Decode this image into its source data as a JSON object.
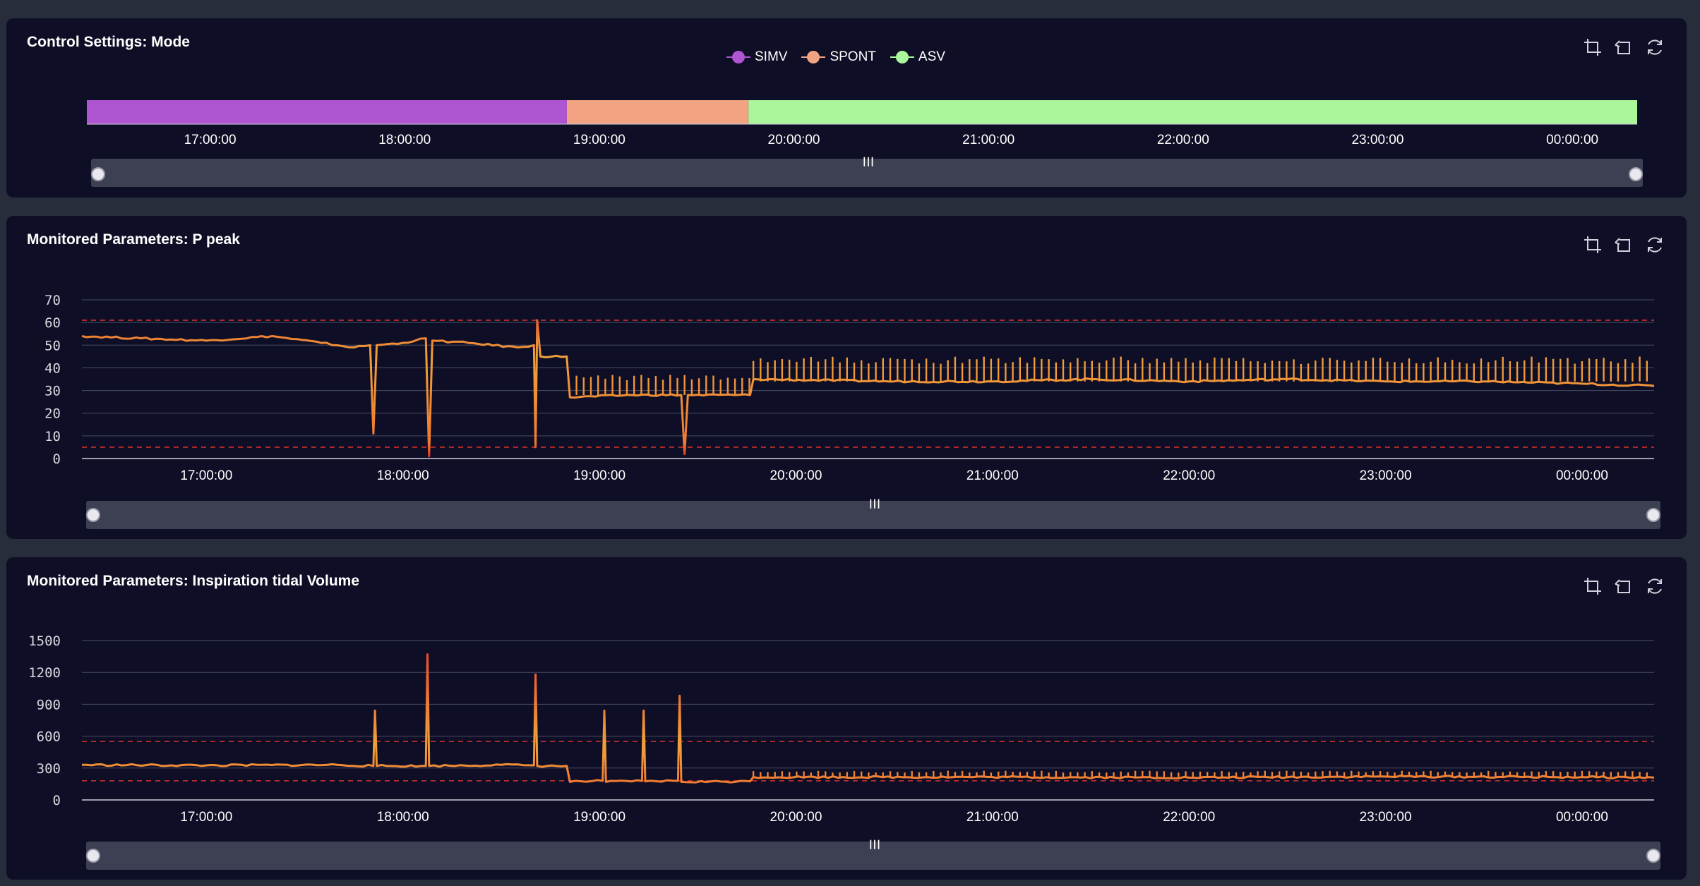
{
  "panels": [
    {
      "title": "Control Settings: Mode"
    },
    {
      "title": "Monitored Parameters: P peak"
    },
    {
      "title": "Monitored Parameters: Inspiration tidal Volume"
    }
  ],
  "toolbox": [
    "zoom-icon",
    "zoom-reset-icon",
    "restore-icon"
  ],
  "slider_handle_glyph": "┃┃┃",
  "chart_data": [
    {
      "type": "timeline",
      "title": "Control Settings: Mode",
      "x_range": [
        "16:22:00",
        "00:20:00"
      ],
      "x_ticks": [
        "17:00:00",
        "18:00:00",
        "19:00:00",
        "20:00:00",
        "21:00:00",
        "22:00:00",
        "23:00:00",
        "00:00:00"
      ],
      "legend": [
        {
          "name": "SIMV",
          "color": "#ae55d2"
        },
        {
          "name": "SPONT",
          "color": "#f2a381"
        },
        {
          "name": "ASV",
          "color": "#abf59b"
        }
      ],
      "legend_placement": "top-center",
      "segments": [
        {
          "mode": "SIMV",
          "start": "16:22:00",
          "end": "18:50:00"
        },
        {
          "mode": "SPONT",
          "start": "18:50:00",
          "end": "19:46:00"
        },
        {
          "mode": "ASV",
          "start": "19:46:00",
          "end": "00:20:00"
        }
      ]
    },
    {
      "type": "line",
      "title": "Monitored Parameters: P peak",
      "x_range": [
        "16:22:00",
        "00:22:00"
      ],
      "x_ticks": [
        "17:00:00",
        "18:00:00",
        "19:00:00",
        "20:00:00",
        "21:00:00",
        "22:00:00",
        "23:00:00",
        "00:00:00"
      ],
      "y_ticks": [
        0,
        10,
        20,
        30,
        40,
        50,
        60,
        70
      ],
      "ylim": [
        0,
        70
      ],
      "grid": true,
      "threshold_lines": [
        61,
        5
      ],
      "series": [
        {
          "values": [
            [
              "16:22:00",
              54
            ],
            [
              "16:40:00",
              53
            ],
            [
              "17:00:00",
              52
            ],
            [
              "17:20:00",
              54
            ],
            [
              "17:35:00",
              51
            ],
            [
              "17:45:00",
              49
            ],
            [
              "17:50:00",
              50
            ],
            [
              "17:51:00",
              11
            ],
            [
              "17:52:00",
              50
            ],
            [
              "18:00:00",
              51
            ],
            [
              "18:07:00",
              53
            ],
            [
              "18:08:00",
              1
            ],
            [
              "18:09:00",
              52
            ],
            [
              "18:20:00",
              51
            ],
            [
              "18:35:00",
              49
            ],
            [
              "18:40:00",
              50
            ],
            [
              "18:40:30",
              5
            ],
            [
              "18:41:00",
              61
            ],
            [
              "18:42:00",
              45
            ],
            [
              "18:50:00",
              45
            ],
            [
              "18:51:00",
              27
            ],
            [
              "19:10:00",
              28
            ],
            [
              "19:25:00",
              28
            ],
            [
              "19:26:00",
              2
            ],
            [
              "19:27:00",
              28
            ],
            [
              "19:46:00",
              28
            ],
            [
              "19:47:00",
              35
            ],
            [
              "20:30:00",
              34
            ],
            [
              "21:00:00",
              34
            ],
            [
              "21:30:00",
              35
            ],
            [
              "22:00:00",
              34
            ],
            [
              "22:30:00",
              35
            ],
            [
              "23:00:00",
              34
            ],
            [
              "23:30:00",
              34
            ],
            [
              "00:00:00",
              33
            ],
            [
              "00:22:00",
              32
            ]
          ]
        }
      ],
      "spikes": [
        {
          "start": "18:53:00",
          "end": "19:46:00",
          "base": 28,
          "peak": 37
        },
        {
          "start": "19:47:00",
          "end": "00:22:00",
          "base": 34,
          "peak": 45
        }
      ]
    },
    {
      "type": "line",
      "title": "Monitored Parameters: Inspiration tidal Volume",
      "x_range": [
        "16:22:00",
        "00:22:00"
      ],
      "x_ticks": [
        "17:00:00",
        "18:00:00",
        "19:00:00",
        "20:00:00",
        "21:00:00",
        "22:00:00",
        "23:00:00",
        "00:00:00"
      ],
      "y_ticks": [
        0,
        300,
        600,
        900,
        1200,
        1500
      ],
      "ylim": [
        0,
        1500
      ],
      "grid": true,
      "threshold_lines": [
        550,
        180
      ],
      "series": [
        {
          "values": [
            [
              "16:22:00",
              330
            ],
            [
              "17:00:00",
              325
            ],
            [
              "17:40:00",
              330
            ],
            [
              "17:51:00",
              320
            ],
            [
              "17:51:30",
              840
            ],
            [
              "17:52:00",
              320
            ],
            [
              "18:07:00",
              320
            ],
            [
              "18:07:30",
              1370
            ],
            [
              "18:08:00",
              320
            ],
            [
              "18:30:00",
              330
            ],
            [
              "18:40:00",
              325
            ],
            [
              "18:40:30",
              1180
            ],
            [
              "18:41:00",
              320
            ],
            [
              "18:50:00",
              320
            ],
            [
              "18:51:00",
              170
            ],
            [
              "19:01:00",
              180
            ],
            [
              "19:01:30",
              840
            ],
            [
              "19:02:00",
              170
            ],
            [
              "19:13:00",
              180
            ],
            [
              "19:13:30",
              840
            ],
            [
              "19:14:00",
              175
            ],
            [
              "19:24:00",
              180
            ],
            [
              "19:24:30",
              980
            ],
            [
              "19:25:00",
              170
            ],
            [
              "19:46:00",
              175
            ],
            [
              "19:47:00",
              215
            ],
            [
              "21:00:00",
              215
            ],
            [
              "22:00:00",
              210
            ],
            [
              "23:00:00",
              220
            ],
            [
              "00:00:00",
              215
            ],
            [
              "00:22:00",
              210
            ]
          ]
        }
      ],
      "spikes": [
        {
          "start": "19:47:00",
          "end": "00:22:00",
          "base": 215,
          "peak": 275
        }
      ]
    }
  ]
}
